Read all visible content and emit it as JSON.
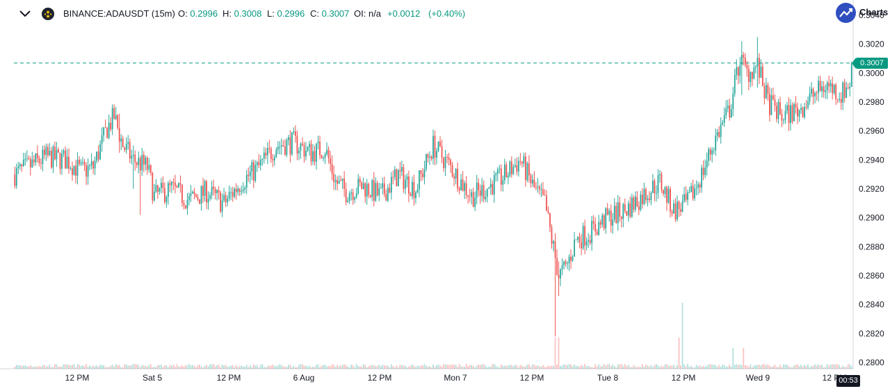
{
  "header": {
    "symbol": "BINANCE:ADAUSDT (15m)",
    "open_label": "O:",
    "open": "0.2996",
    "high_label": "H:",
    "high": "0.3008",
    "low_label": "L:",
    "low": "0.2996",
    "close_label": "C:",
    "close": "0.3007",
    "oi_label": "OI:",
    "oi": "n/a",
    "change": "+0.0012",
    "change_pct": "(+0.40%)",
    "brand_text": "Charts"
  },
  "icons": {
    "collapse": "chevron-down-icon",
    "symbol": "binance-logo-icon",
    "brand": "trend-up-icon"
  },
  "colors": {
    "up": "#26a69a",
    "down": "#ef5350",
    "accent": "#089981",
    "axis_text": "#131722",
    "brand": "#2f4fbf"
  },
  "price_line": {
    "value": 0.3007,
    "label": "0.3007"
  },
  "countdown": "00:53",
  "chart_data": {
    "type": "candlestick",
    "title": "BINANCE:ADAUSDT (15m)",
    "y_ticks": [
      "0.3040",
      "0.3020",
      "0.3000",
      "0.2980",
      "0.2960",
      "0.2940",
      "0.2920",
      "0.2900",
      "0.2880",
      "0.2860",
      "0.2840",
      "0.2820",
      "0.2800"
    ],
    "ylim": [
      0.28,
      0.304
    ],
    "x_ticks": [
      "12 PM",
      "Sat 5",
      "12 PM",
      "6 Aug",
      "12 PM",
      "Mon 7",
      "12 PM",
      "Tue 8",
      "12 PM",
      "Wed 9",
      "12 PM"
    ],
    "grid": false,
    "trend": [
      [
        0,
        0.293
      ],
      [
        18,
        0.2942
      ],
      [
        30,
        0.294
      ],
      [
        38,
        0.2932
      ],
      [
        45,
        0.2935
      ],
      [
        53,
        0.2962
      ],
      [
        57,
        0.297
      ],
      [
        62,
        0.295
      ],
      [
        68,
        0.294
      ],
      [
        76,
        0.2935
      ],
      [
        80,
        0.2915
      ],
      [
        90,
        0.292
      ],
      [
        100,
        0.2912
      ],
      [
        110,
        0.2918
      ],
      [
        120,
        0.291
      ],
      [
        130,
        0.2925
      ],
      [
        140,
        0.2935
      ],
      [
        150,
        0.295
      ],
      [
        160,
        0.2952
      ],
      [
        170,
        0.2945
      ],
      [
        178,
        0.2948
      ],
      [
        184,
        0.2925
      ],
      [
        190,
        0.2918
      ],
      [
        200,
        0.2922
      ],
      [
        210,
        0.2915
      ],
      [
        220,
        0.293
      ],
      [
        230,
        0.292
      ],
      [
        240,
        0.295
      ],
      [
        250,
        0.2935
      ],
      [
        262,
        0.2915
      ],
      [
        270,
        0.292
      ],
      [
        280,
        0.2928
      ],
      [
        290,
        0.294
      ],
      [
        298,
        0.292
      ],
      [
        304,
        0.291
      ],
      [
        308,
        0.2885
      ],
      [
        312,
        0.286
      ],
      [
        316,
        0.2865
      ],
      [
        322,
        0.2885
      ],
      [
        330,
        0.289
      ],
      [
        340,
        0.29
      ],
      [
        350,
        0.2905
      ],
      [
        360,
        0.2915
      ],
      [
        370,
        0.2925
      ],
      [
        378,
        0.2905
      ],
      [
        386,
        0.291
      ],
      [
        394,
        0.293
      ],
      [
        402,
        0.2955
      ],
      [
        410,
        0.2975
      ],
      [
        416,
        0.301
      ],
      [
        420,
        0.3
      ],
      [
        426,
        0.3005
      ],
      [
        432,
        0.298
      ],
      [
        440,
        0.297
      ],
      [
        450,
        0.2975
      ],
      [
        458,
        0.2985
      ],
      [
        466,
        0.2992
      ],
      [
        474,
        0.2985
      ],
      [
        480,
        0.2995
      ]
    ],
    "wicks": [
      {
        "i": 60,
        "high": 0.2972,
        "low": 0.2945
      },
      {
        "i": 68,
        "high": 0.295,
        "low": 0.292
      },
      {
        "i": 72,
        "high": 0.294,
        "low": 0.2902
      },
      {
        "i": 310,
        "high": 0.2885,
        "low": 0.2818
      },
      {
        "i": 312,
        "high": 0.287,
        "low": 0.2846
      },
      {
        "i": 417,
        "high": 0.3022,
        "low": 0.2985
      },
      {
        "i": 426,
        "high": 0.3025,
        "low": 0.299
      },
      {
        "i": 444,
        "high": 0.2975,
        "low": 0.296
      }
    ]
  }
}
